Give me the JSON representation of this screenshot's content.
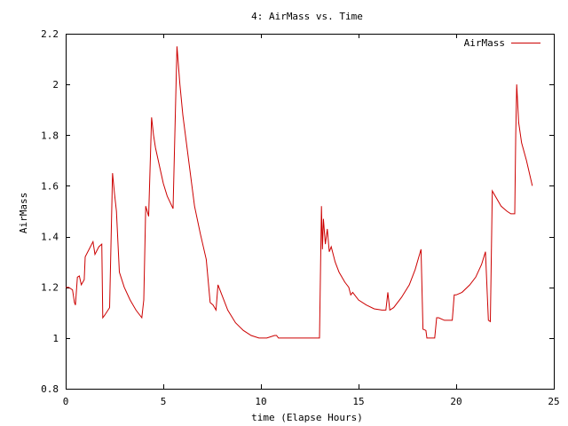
{
  "chart_data": {
    "type": "line",
    "title": "4: AirMass vs. Time",
    "xlabel": "time (Elapse Hours)",
    "ylabel": "AirMass",
    "xlim": [
      0,
      25
    ],
    "ylim": [
      0.8,
      2.2
    ],
    "xticks": [
      0,
      5,
      10,
      15,
      20,
      25
    ],
    "xtick_labels": [
      "0",
      "5",
      "10",
      "15",
      "20",
      "25"
    ],
    "yticks": [
      0.8,
      1.0,
      1.2,
      1.4,
      1.6,
      1.8,
      2.0,
      2.2
    ],
    "ytick_labels": [
      "0.8",
      "1",
      "1.2",
      "1.4",
      "1.6",
      "1.8",
      "2",
      "2.2"
    ],
    "grid": false,
    "legend": "top-right",
    "series": [
      {
        "name": "AirMass",
        "color": "#cc0000",
        "x": [
          0,
          0.15,
          0.35,
          0.45,
          0.5,
          0.6,
          0.7,
          0.8,
          0.95,
          1.0,
          1.2,
          1.4,
          1.5,
          1.7,
          1.85,
          1.9,
          2.0,
          2.25,
          2.4,
          2.5,
          2.6,
          2.75,
          3.0,
          3.3,
          3.6,
          3.9,
          4.0,
          4.1,
          4.25,
          4.4,
          4.5,
          4.6,
          4.8,
          5.0,
          5.2,
          5.5,
          5.7,
          5.85,
          6.0,
          6.3,
          6.6,
          6.9,
          7.2,
          7.4,
          7.55,
          7.7,
          7.8,
          8.0,
          8.3,
          8.7,
          9.1,
          9.5,
          9.9,
          10.3,
          10.7,
          10.8,
          10.9,
          11.5,
          12.2,
          13.0,
          13.1,
          13.15,
          13.2,
          13.3,
          13.4,
          13.5,
          13.6,
          13.8,
          14.0,
          14.3,
          14.5,
          14.6,
          14.7,
          15.0,
          15.4,
          15.8,
          16.2,
          16.4,
          16.5,
          16.6,
          16.8,
          17.2,
          17.6,
          17.9,
          18.2,
          18.3,
          18.45,
          18.5,
          18.7,
          18.9,
          19.0,
          19.1,
          19.4,
          19.8,
          19.9,
          20.0,
          20.3,
          20.7,
          21.0,
          21.3,
          21.5,
          21.65,
          21.75,
          21.85,
          22.0,
          22.3,
          22.6,
          22.8,
          23.0,
          23.05,
          23.1,
          23.2,
          23.35,
          23.6,
          23.9
        ],
        "y": [
          1.2,
          1.2,
          1.19,
          1.14,
          1.13,
          1.24,
          1.245,
          1.21,
          1.23,
          1.32,
          1.35,
          1.38,
          1.33,
          1.36,
          1.37,
          1.08,
          1.09,
          1.12,
          1.65,
          1.57,
          1.5,
          1.26,
          1.2,
          1.15,
          1.11,
          1.08,
          1.15,
          1.52,
          1.48,
          1.87,
          1.8,
          1.75,
          1.68,
          1.61,
          1.56,
          1.51,
          2.15,
          2.0,
          1.88,
          1.7,
          1.52,
          1.41,
          1.31,
          1.14,
          1.13,
          1.11,
          1.21,
          1.17,
          1.11,
          1.06,
          1.03,
          1.01,
          1.0,
          1.0,
          1.01,
          1.01,
          1.0,
          1.0,
          1.0,
          1.0,
          1.52,
          1.35,
          1.47,
          1.37,
          1.43,
          1.34,
          1.36,
          1.3,
          1.26,
          1.22,
          1.2,
          1.17,
          1.18,
          1.15,
          1.13,
          1.115,
          1.11,
          1.11,
          1.18,
          1.11,
          1.12,
          1.16,
          1.21,
          1.27,
          1.35,
          1.035,
          1.03,
          1.0,
          1.0,
          1.0,
          1.08,
          1.08,
          1.07,
          1.07,
          1.17,
          1.17,
          1.18,
          1.21,
          1.24,
          1.29,
          1.34,
          1.07,
          1.065,
          1.58,
          1.56,
          1.52,
          1.5,
          1.49,
          1.49,
          1.8,
          2.0,
          1.85,
          1.77,
          1.7,
          1.6
        ]
      }
    ]
  }
}
